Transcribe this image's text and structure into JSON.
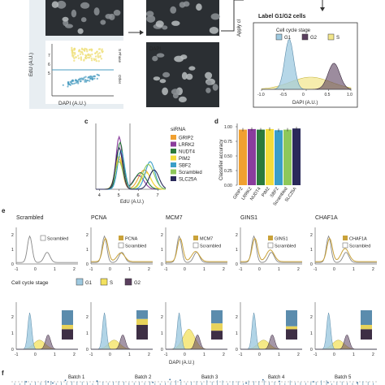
{
  "top": {
    "edu_label": "EdU (A.U.)",
    "dapi_label": "DAPI (A.U.)",
    "s_phase": "S Phase",
    "other": "Other",
    "dapi_tile": "DAPI",
    "apply_cl": "Apply cl",
    "label_title": "Label G1/G2 cells",
    "legend_title": "Cell cycle stage",
    "stages": [
      "G1",
      "G2",
      "S"
    ],
    "x_ticks": [
      "-1.0",
      "-0.5",
      "0",
      "0.5",
      "1.0"
    ],
    "x_title": "DAPI (A.U.)",
    "colors": {
      "G1": "#9ec9e0",
      "G2": "#5a3f5e",
      "S": "#f2e68a",
      "scatter_yellow": "#efe07a",
      "scatter_blue": "#4a9cc0"
    }
  },
  "panel_c": {
    "letter": "c",
    "legend_title": "siRNA",
    "sirna": [
      "GRIP2",
      "LRRK2",
      "NUDT4",
      "PIM2",
      "SBF2",
      "Scrambled",
      "SLC25A"
    ],
    "colors": [
      "#f0a030",
      "#8a3c9c",
      "#2b7a3b",
      "#f3dc3a",
      "#3a9ec8",
      "#8ec85a",
      "#2a2a5a"
    ],
    "x_ticks": [
      "4",
      "5",
      "6",
      "7"
    ],
    "x_title": "EdU (A.U.)"
  },
  "panel_d": {
    "letter": "d",
    "y_title": "Classifier accuracy",
    "y_ticks": [
      "0.00",
      "0.25",
      "0.50",
      "0.75",
      "1.00"
    ],
    "chart_data": {
      "type": "bar",
      "categories": [
        "GRIP2",
        "LRRK2",
        "NUDT4",
        "PIM2",
        "SBF2",
        "Scrambled",
        "SLC25A"
      ],
      "values": [
        0.95,
        0.96,
        0.95,
        0.96,
        0.94,
        0.95,
        0.97
      ],
      "colors": [
        "#f0a030",
        "#8a3c9c",
        "#2b7a3b",
        "#f3dc3a",
        "#3a9ec8",
        "#8ec85a",
        "#2a2a5a"
      ],
      "ylim": [
        0,
        1
      ]
    }
  },
  "panel_e": {
    "letter": "e",
    "genes": [
      "Scrambled",
      "PCNA",
      "MCM7",
      "GINS1",
      "CHAF1A"
    ],
    "legend_scrambled": "Scrambled",
    "y_ticks": [
      "0",
      "1",
      "2"
    ],
    "x_ticks": [
      "-1",
      "0",
      "1",
      "2"
    ],
    "stage_title": "Cell cycle stage",
    "stages": [
      "G1",
      "S",
      "G2"
    ],
    "x_title": "DAPI (A.U.)",
    "colors": {
      "G1": "#9ec9e0",
      "S": "#f3e15e",
      "G2": "#5a3f5e",
      "gene": "#c9a23a",
      "scrambled": "#888888"
    }
  },
  "panel_f": {
    "letter": "f",
    "batches": [
      "Batch 1",
      "Batch 2",
      "Batch 3",
      "Batch 4",
      "Batch 5"
    ]
  }
}
